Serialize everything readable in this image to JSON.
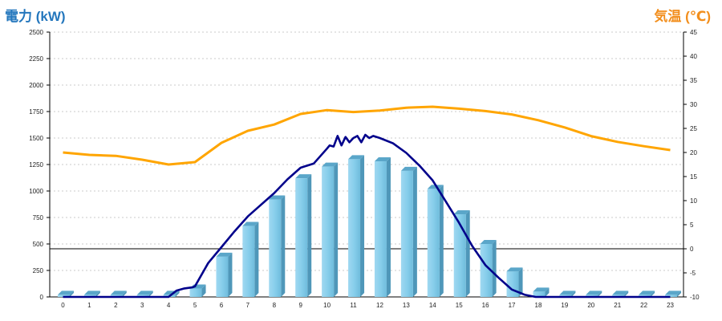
{
  "chart_data": {
    "type": "bar",
    "title_left": "電力 (kW)",
    "title_right": "気温 (℃)",
    "categories": [
      "0",
      "1",
      "2",
      "3",
      "4",
      "5",
      "6",
      "7",
      "8",
      "9",
      "10",
      "11",
      "12",
      "13",
      "14",
      "15",
      "16",
      "17",
      "18",
      "19",
      "20",
      "21",
      "22",
      "23"
    ],
    "y_left": {
      "min": 0,
      "max": 2500,
      "ticks": [
        0,
        250,
        500,
        750,
        1000,
        1250,
        1500,
        1750,
        2000,
        2250,
        2500
      ]
    },
    "y_right": {
      "min": -10,
      "max": 45,
      "ticks": [
        -10,
        -5,
        0,
        5,
        10,
        15,
        20,
        25,
        30,
        35,
        40,
        45
      ]
    },
    "grid": true,
    "series": [
      {
        "kind": "bar",
        "axis": "left",
        "color": "#87ceeb",
        "values": [
          20,
          20,
          20,
          20,
          20,
          80,
          380,
          670,
          920,
          1120,
          1230,
          1300,
          1280,
          1190,
          1020,
          780,
          500,
          240,
          50,
          20,
          20,
          20,
          20,
          20
        ]
      },
      {
        "kind": "line",
        "axis": "left",
        "color": "#00008b",
        "x": [
          0,
          1,
          2,
          3,
          4,
          4.3,
          4.6,
          4.9,
          5,
          5.5,
          6,
          6.5,
          7,
          7.5,
          8,
          8.5,
          9,
          9.5,
          10,
          10.1,
          10.25,
          10.4,
          10.55,
          10.7,
          10.85,
          11,
          11.15,
          11.3,
          11.45,
          11.6,
          11.75,
          12,
          12.5,
          13,
          13.5,
          14,
          14.5,
          15,
          15.5,
          16,
          16.5,
          17,
          17.5,
          17.9,
          18,
          19,
          20,
          21,
          22,
          23
        ],
        "values": [
          0,
          0,
          0,
          0,
          0,
          60,
          80,
          90,
          100,
          320,
          470,
          620,
          760,
          870,
          980,
          1110,
          1220,
          1260,
          1400,
          1430,
          1420,
          1520,
          1430,
          1510,
          1460,
          1500,
          1520,
          1460,
          1530,
          1500,
          1520,
          1500,
          1450,
          1360,
          1240,
          1100,
          900,
          700,
          480,
          300,
          180,
          70,
          20,
          0,
          0,
          0,
          0,
          0,
          0,
          0
        ]
      },
      {
        "kind": "line",
        "axis": "right",
        "color": "#ffa500",
        "values": [
          20,
          19.5,
          19.3,
          18.5,
          17.5,
          18,
          22,
          24.5,
          25.8,
          28,
          28.8,
          28.4,
          28.7,
          29.3,
          29.5,
          29.1,
          28.6,
          27.9,
          26.7,
          25.2,
          23.4,
          22.2,
          21.3,
          20.5
        ]
      }
    ]
  }
}
